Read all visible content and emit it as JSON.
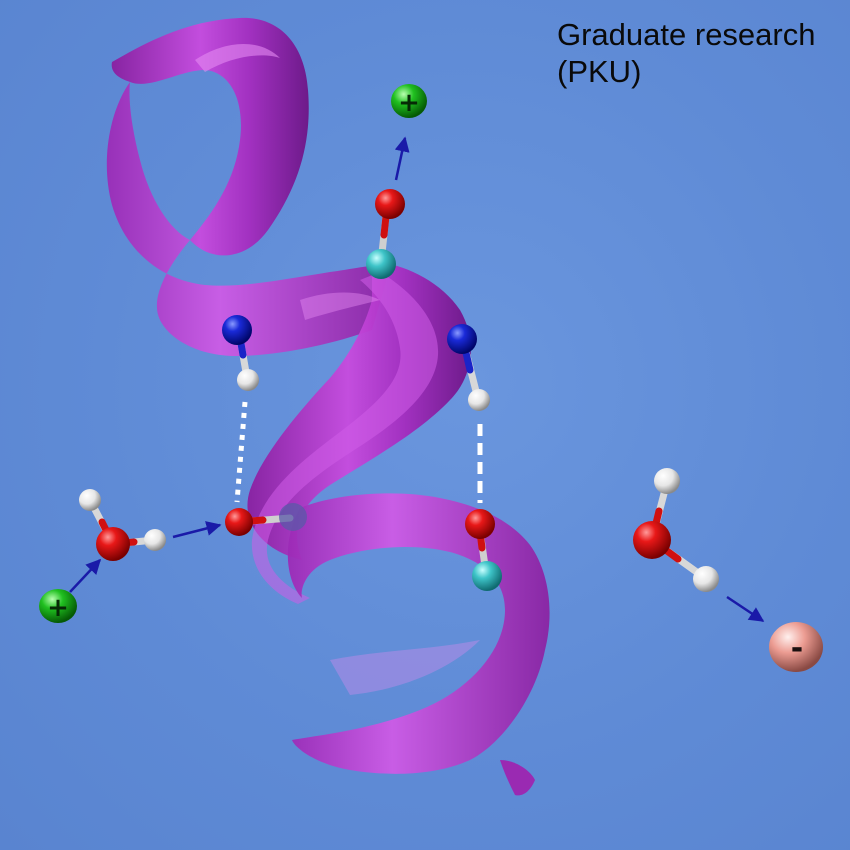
{
  "caption": {
    "line1": "Graduate research",
    "line2": "(PKU)"
  },
  "ions": {
    "positive_symbol": "+",
    "negative_symbol": "-"
  },
  "colors": {
    "background": "#5f8bd6",
    "helix": "#b030c8",
    "oxygen": "#e01010",
    "nitrogen": "#1020d0",
    "hydrogen": "#f2f2f2",
    "carbon": "#40c8c8",
    "cation": "#20c020",
    "anion": "#e89a90",
    "arrow": "#1a1aa8",
    "hbond": "#ffffff"
  }
}
